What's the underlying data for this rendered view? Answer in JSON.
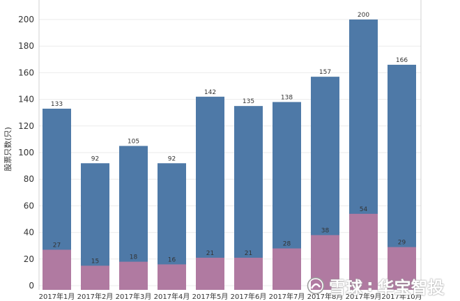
{
  "colors": {
    "series_total": "#4e79a7",
    "series_sub": "#b07aa1",
    "grid": "#ebebeb",
    "axis": "#d0d0d0"
  },
  "chart_data": {
    "type": "bar",
    "stacked": false,
    "overlaid": true,
    "title": "",
    "xlabel": "",
    "ylabel": "股票只数(只)",
    "ylim": [
      0,
      210
    ],
    "yticks": [
      0,
      20,
      40,
      60,
      80,
      100,
      120,
      140,
      160,
      180,
      200
    ],
    "grid": true,
    "legend": "none",
    "categories": [
      "2017年1月",
      "2017年2月",
      "2017年3月",
      "2017年4月",
      "2017年5月",
      "2017年6月",
      "2017年7月",
      "2017年8月",
      "2017年9月",
      "2017年10月"
    ],
    "series": [
      {
        "values": [
          133,
          92,
          105,
          92,
          142,
          135,
          138,
          157,
          200,
          166
        ],
        "color": "#4e79a7"
      },
      {
        "values": [
          27,
          15,
          18,
          16,
          21,
          21,
          28,
          38,
          54,
          29
        ],
        "color": "#b07aa1"
      }
    ]
  },
  "watermark": {
    "brand": "雪球",
    "author": "华宝智投"
  }
}
